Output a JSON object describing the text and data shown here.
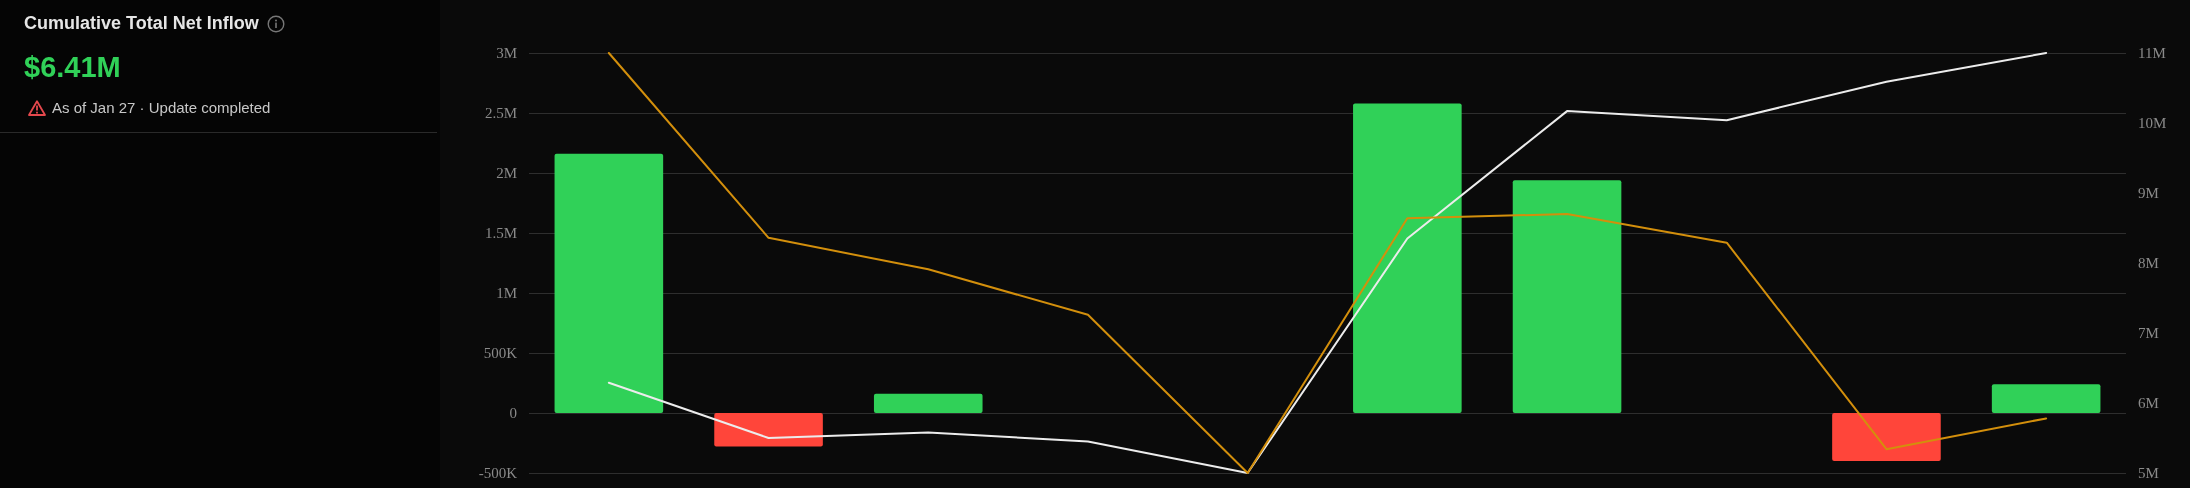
{
  "chart_data": {
    "type": "bar",
    "title": "Cumulative Total Net Inflow",
    "subtitle": "$6.41M",
    "annotations": [
      "As of Jan 27 · Update completed"
    ],
    "categories": [
      null,
      null,
      null,
      null,
      null,
      null,
      null,
      null,
      null,
      null
    ],
    "series": [
      {
        "values": [
          2160000,
          -280000,
          160000,
          null,
          null,
          2580000,
          1940000,
          null,
          -400000,
          240000
        ],
        "colors": [
          "#30d158",
          "#ff453a",
          "#30d158",
          null,
          null,
          "#30d158",
          "#30d158",
          null,
          "#ff453a",
          "#30d158"
        ]
      },
      {
        "type": "line",
        "axis": "y2",
        "color": "#ececec",
        "values": [
          6290000,
          5500000,
          5580000,
          5450000,
          5000000,
          8350000,
          10170000,
          10040000,
          10590000,
          11000000
        ]
      },
      {
        "type": "line",
        "axis": "y2",
        "color": "#d38f0c",
        "values": [
          11000000,
          8360000,
          7910000,
          7260000,
          5000000,
          8640000,
          8700000,
          8290000,
          5340000,
          5780000
        ]
      }
    ],
    "ylim": [
      -500000,
      3000000
    ],
    "yticks": [
      {
        "value": -500000,
        "label": "-500K"
      },
      0,
      {
        "value": 500000,
        "label": "500K"
      },
      {
        "value": 1000000,
        "label": "1M"
      },
      {
        "value": 1500000,
        "label": "1.5M"
      },
      {
        "value": 2000000,
        "label": "2M"
      },
      {
        "value": 2500000,
        "label": "2.5M"
      },
      {
        "value": 3000000,
        "label": "3M"
      }
    ],
    "y2lim": [
      5000000,
      11000000
    ],
    "y2ticks": [
      {
        "value": 5000000,
        "label": "5M"
      },
      {
        "value": 6000000,
        "label": "6M"
      },
      {
        "value": 7000000,
        "label": "7M"
      },
      {
        "value": 8000000,
        "label": "8M"
      },
      {
        "value": 9000000,
        "label": "9M"
      },
      {
        "value": 10000000,
        "label": "10M"
      },
      {
        "value": 11000000,
        "label": "11M"
      }
    ],
    "grid": "y",
    "marker": "none"
  }
}
